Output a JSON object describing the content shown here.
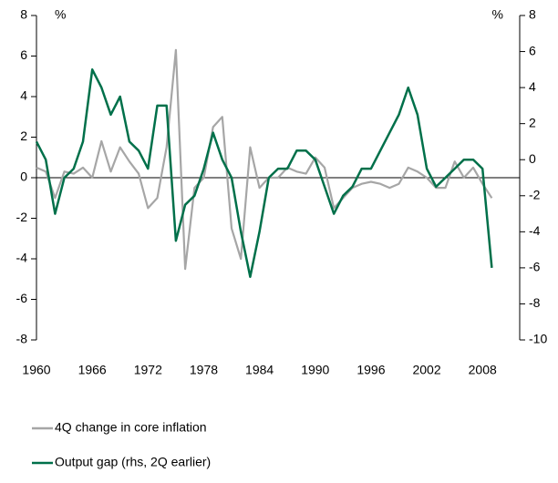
{
  "chart_data": {
    "type": "line",
    "ylabel": "%",
    "y2label": "%",
    "x": [
      1960,
      1961,
      1962,
      1963,
      1964,
      1965,
      1966,
      1967,
      1968,
      1969,
      1970,
      1971,
      1972,
      1973,
      1974,
      1975,
      1976,
      1977,
      1978,
      1979,
      1980,
      1981,
      1982,
      1983,
      1984,
      1985,
      1986,
      1987,
      1988,
      1989,
      1990,
      1991,
      1992,
      1993,
      1994,
      1995,
      1996,
      1997,
      1998,
      1999,
      2000,
      2001,
      2002,
      2003,
      2004,
      2005,
      2006,
      2007,
      2008,
      2009
    ],
    "series": [
      {
        "name": "4Q change in core inflation",
        "color": "#a6a6a6",
        "values": [
          0.5,
          0.3,
          -1,
          0.3,
          0.2,
          0.5,
          0,
          1.8,
          0.3,
          1.5,
          0.8,
          0.2,
          -1.5,
          -1,
          1.5,
          6.3,
          -4.5,
          -0.5,
          0,
          2.5,
          3,
          -2.5,
          -4,
          1.5,
          -0.5,
          0,
          0,
          0.5,
          0.3,
          0.2,
          1,
          0.5,
          -1.5,
          -1,
          -0.5,
          -0.3,
          -0.2,
          -0.3,
          -0.5,
          -0.3,
          0.5,
          0.3,
          0,
          -0.5,
          -0.5,
          0.8,
          0,
          0.5,
          -0.3,
          -1
        ]
      },
      {
        "name": "Output gap (rhs, 2Q earlier)",
        "color": "#00704a",
        "axis": "y2",
        "values": [
          1,
          0,
          -3,
          -1,
          -0.5,
          1,
          5,
          4,
          2.5,
          3.5,
          1,
          0.5,
          -0.5,
          3,
          3,
          -4.5,
          -2.5,
          -2,
          -0.5,
          1.5,
          0,
          -1,
          -4,
          -6.5,
          -4,
          -1,
          -0.5,
          -0.5,
          0.5,
          0.5,
          0,
          -1.5,
          -3,
          -2,
          -1.5,
          -0.5,
          -0.5,
          0.5,
          1.5,
          2.5,
          4,
          2.5,
          -0.5,
          -1.5,
          -1,
          -0.5,
          0,
          0,
          -0.5,
          -6
        ]
      }
    ],
    "xlim": [
      1960,
      2012
    ],
    "xticks": [
      1960,
      1966,
      1972,
      1978,
      1984,
      1990,
      1996,
      2002,
      2008
    ],
    "ylim": [
      -8,
      8
    ],
    "yticks": [
      -8,
      -6,
      -4,
      -2,
      0,
      2,
      4,
      6,
      8
    ],
    "y2lim": [
      -10,
      8
    ],
    "y2ticks": [
      -10,
      -8,
      -6,
      -4,
      -2,
      0,
      2,
      4,
      6,
      8
    ]
  }
}
